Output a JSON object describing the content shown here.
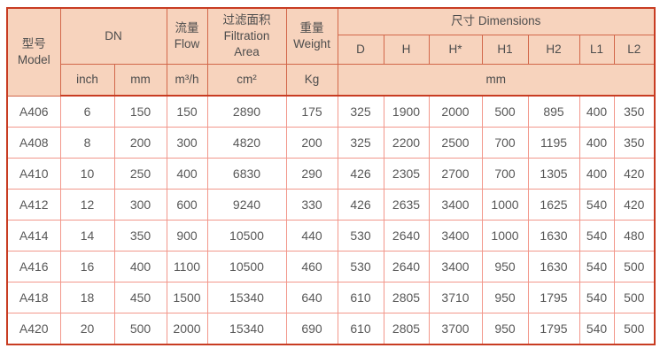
{
  "colors": {
    "header_bg": "#f7d3bd",
    "outer_border": "#c83c22",
    "header_grid_border": "#d2674a",
    "data_grid_border": "#f2978b",
    "text": "#585858"
  },
  "table": {
    "header": {
      "model_zh": "型号",
      "model_en": "Model",
      "dn": "DN",
      "flow_zh": "流量",
      "flow_en": "Flow",
      "filtration_zh": "过滤面积",
      "filtration_en1": "Filtration",
      "filtration_en2": "Area",
      "weight_zh": "重量",
      "weight_en": "Weight",
      "dimensions": "尺寸 Dimensions",
      "dim_cols": [
        "D",
        "H",
        "H*",
        "H1",
        "H2",
        "L1",
        "L2"
      ],
      "unit_inch": "inch",
      "unit_mm": "mm",
      "unit_flow": "m³/h",
      "unit_area": "cm²",
      "unit_weight": "Kg",
      "unit_dims_mm": "mm"
    },
    "rows": [
      {
        "cells": [
          "A406",
          "6",
          "150",
          "150",
          "2890",
          "175",
          "325",
          "1900",
          "2000",
          "500",
          "895",
          "400",
          "350"
        ]
      },
      {
        "cells": [
          "A408",
          "8",
          "200",
          "300",
          "4820",
          "200",
          "325",
          "2200",
          "2500",
          "700",
          "1195",
          "400",
          "350"
        ]
      },
      {
        "cells": [
          "A410",
          "10",
          "250",
          "400",
          "6830",
          "290",
          "426",
          "2305",
          "2700",
          "700",
          "1305",
          "400",
          "420"
        ]
      },
      {
        "cells": [
          "A412",
          "12",
          "300",
          "600",
          "9240",
          "330",
          "426",
          "2635",
          "3400",
          "1000",
          "1625",
          "540",
          "420"
        ]
      },
      {
        "cells": [
          "A414",
          "14",
          "350",
          "900",
          "10500",
          "440",
          "530",
          "2640",
          "3400",
          "1000",
          "1630",
          "540",
          "480"
        ]
      },
      {
        "cells": [
          "A416",
          "16",
          "400",
          "1100",
          "10500",
          "460",
          "530",
          "2640",
          "3400",
          "950",
          "1630",
          "540",
          "500"
        ]
      },
      {
        "cells": [
          "A418",
          "18",
          "450",
          "1500",
          "15340",
          "640",
          "610",
          "2805",
          "3710",
          "950",
          "1795",
          "540",
          "500"
        ]
      },
      {
        "cells": [
          "A420",
          "20",
          "500",
          "2000",
          "15340",
          "690",
          "610",
          "2805",
          "3700",
          "950",
          "1795",
          "540",
          "500"
        ]
      }
    ]
  }
}
